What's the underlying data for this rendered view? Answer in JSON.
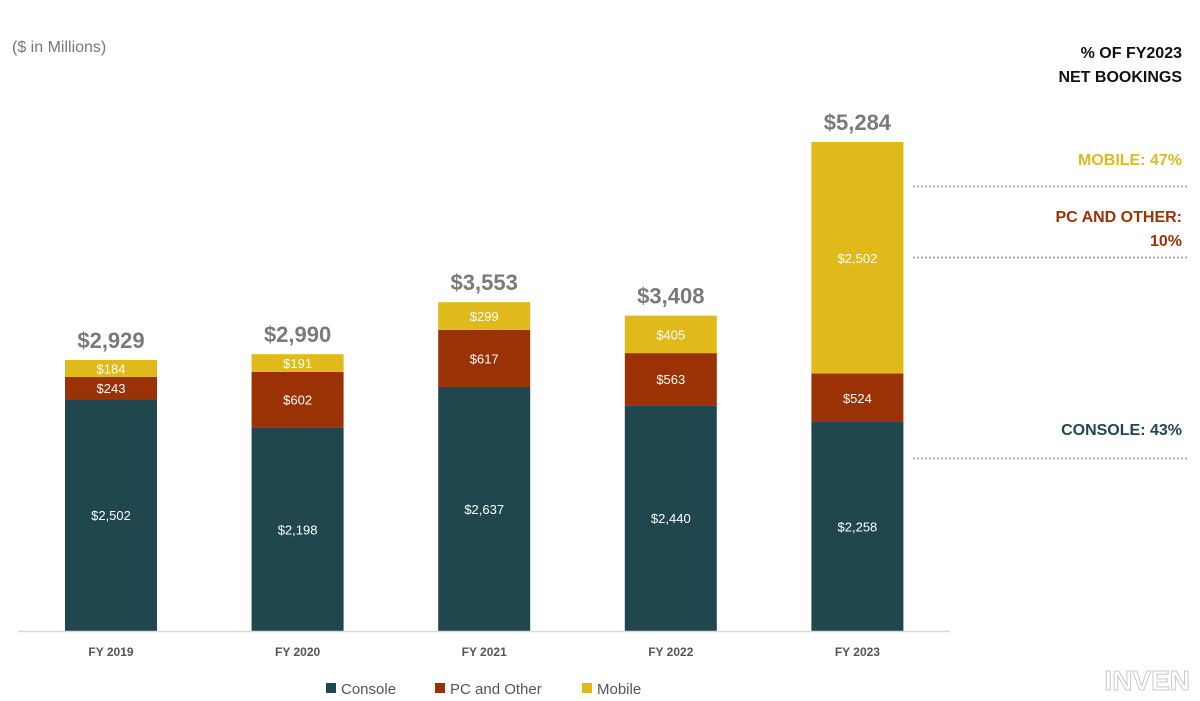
{
  "chart_data": {
    "type": "bar",
    "stacked": true,
    "unit_note": "($ in Millions)",
    "categories": [
      "FY 2019",
      "FY 2020",
      "FY 2021",
      "FY 2022",
      "FY 2023"
    ],
    "series": [
      {
        "name": "Console",
        "color": "#1f474d",
        "values": [
          2502,
          2198,
          2637,
          2440,
          2258
        ],
        "labels": [
          "$2,502",
          "$2,198",
          "$2,637",
          "$2,440",
          "$2,258"
        ]
      },
      {
        "name": "PC and Other",
        "color": "#9b3206",
        "values": [
          243,
          602,
          617,
          563,
          524
        ],
        "labels": [
          "$243",
          "$602",
          "$617",
          "$563",
          "$524"
        ]
      },
      {
        "name": "Mobile",
        "color": "#e0b91a",
        "values": [
          184,
          191,
          299,
          405,
          2502
        ],
        "labels": [
          "$184",
          "$191",
          "$299",
          "$405",
          "$2,502"
        ]
      }
    ],
    "totals": [
      2929,
      2990,
      3553,
      3408,
      5284
    ],
    "total_labels": [
      "$2,929",
      "$2,990",
      "$3,553",
      "$3,408",
      "$5,284"
    ],
    "ylim": [
      0,
      5284
    ],
    "grid": false,
    "legend": "bottom",
    "share_panel": {
      "title_line1": "% OF FY2023",
      "title_line2": "NET BOOKINGS",
      "mobile": "MOBILE: 47%",
      "pc_line1": "PC AND OTHER:",
      "pc_line2": "10%",
      "console": "CONSOLE: 43%"
    }
  },
  "watermark": "INVEN"
}
